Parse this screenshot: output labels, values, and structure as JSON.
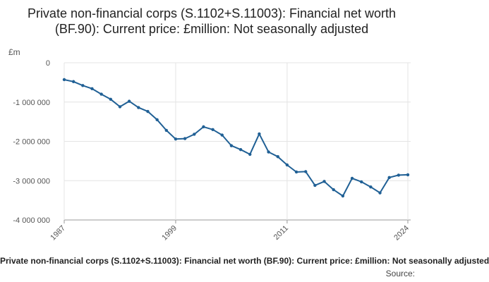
{
  "chart_data": {
    "type": "line",
    "title": "Private non-financial corps (S.1102+S.11003): Financial net worth (BF.90): Current price: £million: Not seasonally adjusted",
    "y_unit_label": "£m",
    "xlabel": "",
    "ylabel": "",
    "xlim": [
      1987,
      2024
    ],
    "ylim": [
      -4000000,
      0
    ],
    "x_tick_labels": [
      "1987",
      "1999",
      "2011",
      "2024"
    ],
    "y_tick_labels": [
      "0",
      "-1 000 000",
      "-2 000 000",
      "-3 000 000",
      "-4 000 000"
    ],
    "y_ticks": [
      0,
      -1000000,
      -2000000,
      -3000000,
      -4000000
    ],
    "x_ticks": [
      1987,
      1999,
      2011,
      2024
    ],
    "grid": true,
    "line_color": "#206095",
    "x": [
      1987,
      1988,
      1989,
      1990,
      1991,
      1992,
      1993,
      1994,
      1995,
      1996,
      1997,
      1998,
      1999,
      2000,
      2001,
      2002,
      2003,
      2004,
      2005,
      2006,
      2007,
      2008,
      2009,
      2010,
      2011,
      2012,
      2013,
      2014,
      2015,
      2016,
      2017,
      2018,
      2019,
      2020,
      2021,
      2022,
      2023,
      2024
    ],
    "values": [
      -430000,
      -480000,
      -580000,
      -660000,
      -800000,
      -930000,
      -1120000,
      -980000,
      -1140000,
      -1240000,
      -1450000,
      -1720000,
      -1940000,
      -1930000,
      -1820000,
      -1630000,
      -1700000,
      -1840000,
      -2110000,
      -2210000,
      -2330000,
      -1810000,
      -2270000,
      -2390000,
      -2600000,
      -2780000,
      -2770000,
      -3120000,
      -3020000,
      -3230000,
      -3390000,
      -2940000,
      -3030000,
      -3160000,
      -3310000,
      -2920000,
      -2860000,
      -2850000
    ]
  },
  "caption": "Private non-financial corps (S.1102+S.11003): Financial net worth (BF.90): Current price: £million: Not seasonally adjusted",
  "source_label": "Source:"
}
